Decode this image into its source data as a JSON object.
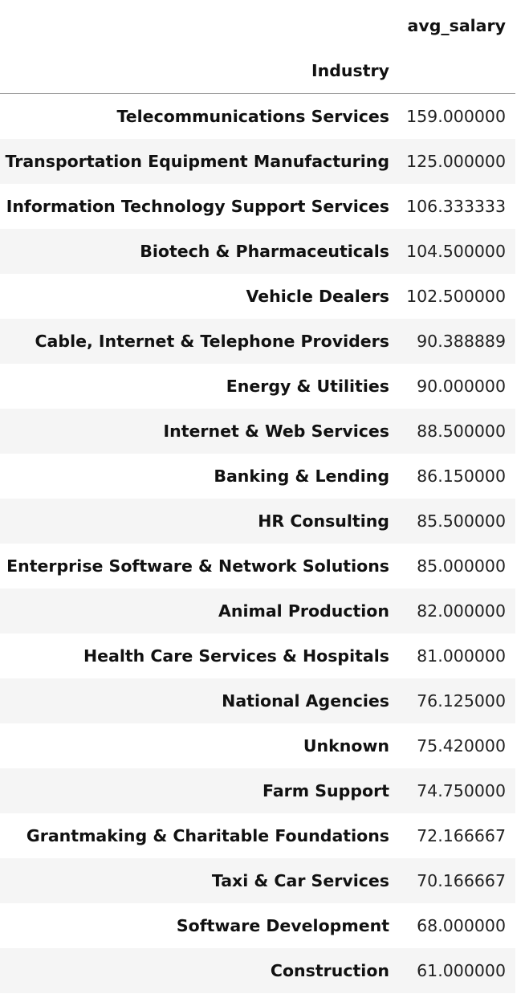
{
  "table": {
    "value_column_header": "avg_salary",
    "index_header": "Industry",
    "rows": [
      {
        "industry": "Telecommunications Services",
        "avg_salary": "159.000000"
      },
      {
        "industry": "Transportation Equipment Manufacturing",
        "avg_salary": "125.000000"
      },
      {
        "industry": "Information Technology Support Services",
        "avg_salary": "106.333333"
      },
      {
        "industry": "Biotech & Pharmaceuticals",
        "avg_salary": "104.500000"
      },
      {
        "industry": "Vehicle Dealers",
        "avg_salary": "102.500000"
      },
      {
        "industry": "Cable, Internet & Telephone Providers",
        "avg_salary": "90.388889"
      },
      {
        "industry": "Energy & Utilities",
        "avg_salary": "90.000000"
      },
      {
        "industry": "Internet & Web Services",
        "avg_salary": "88.500000"
      },
      {
        "industry": "Banking & Lending",
        "avg_salary": "86.150000"
      },
      {
        "industry": "HR Consulting",
        "avg_salary": "85.500000"
      },
      {
        "industry": "Enterprise Software & Network Solutions",
        "avg_salary": "85.000000"
      },
      {
        "industry": "Animal Production",
        "avg_salary": "82.000000"
      },
      {
        "industry": "Health Care Services & Hospitals",
        "avg_salary": "81.000000"
      },
      {
        "industry": "National Agencies",
        "avg_salary": "76.125000"
      },
      {
        "industry": "Unknown",
        "avg_salary": "75.420000"
      },
      {
        "industry": "Farm Support",
        "avg_salary": "74.750000"
      },
      {
        "industry": "Grantmaking & Charitable Foundations",
        "avg_salary": "72.166667"
      },
      {
        "industry": "Taxi & Car Services",
        "avg_salary": "70.166667"
      },
      {
        "industry": "Software Development",
        "avg_salary": "68.000000"
      },
      {
        "industry": "Construction",
        "avg_salary": "61.000000"
      }
    ]
  }
}
